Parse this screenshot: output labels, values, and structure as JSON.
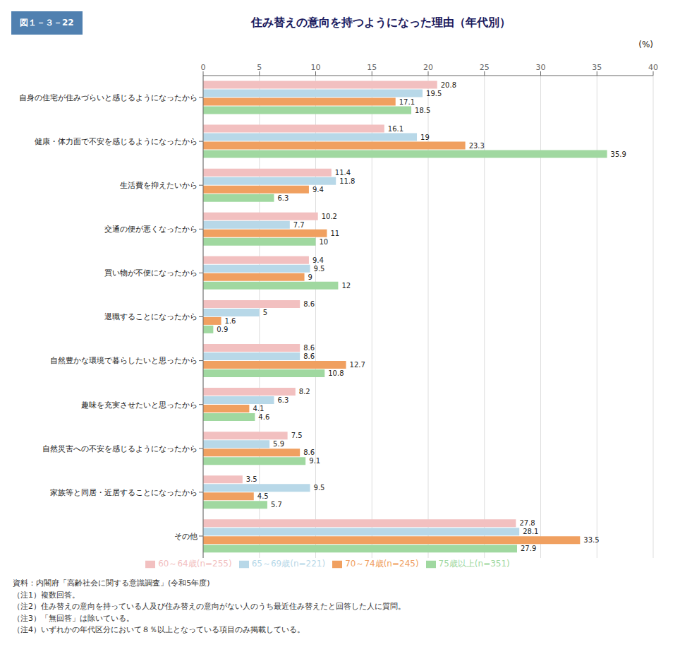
{
  "chart_data": {
    "type": "bar",
    "orientation": "horizontal",
    "title": "住み替えの意向を持つようになった理由（年代別）",
    "xlabel": "(%)",
    "annotations": [
      "図１－３－22",
      "資料：内閣府「高齢社会に関する意識調査」(令和5年度)",
      "（注1）複数回答。",
      "（注2）住み替えの意向を持っている人及び住み替えの意向がない人のうち最近住み替えたと回答した人に質問。",
      "（注3）「無回答」は除いている。",
      "（注4）いずれかの年代区分において８％以上となっている項目のみ掲載している。"
    ],
    "categories": [
      "自身の住宅が住みづらいと感じるようになったから",
      "健康・体力面で不安を感じるようになったから",
      "生活費を抑えたいから",
      "交通の便が悪くなったから",
      "買い物が不便になったから",
      "退職することになったから",
      "自然豊かな環境で暮らしたいと思ったから",
      "趣味を充実させたいと思ったから",
      "自然災害への不安を感じるようになったから",
      "家族等と同居・近居することになったから",
      "その他"
    ],
    "series": [
      {
        "name": "60～64歳(n=255)",
        "color": "#f2c0c0",
        "values": [
          20.8,
          16.1,
          11.4,
          10.2,
          9.4,
          8.6,
          8.6,
          8.2,
          7.5,
          3.5,
          27.8
        ]
      },
      {
        "name": "65～69歳(n=221)",
        "color": "#b8d8e8",
        "values": [
          19.5,
          19.0,
          11.8,
          7.7,
          9.5,
          5.0,
          8.6,
          6.3,
          5.9,
          9.5,
          28.1
        ]
      },
      {
        "name": "70～74歳(n=245)",
        "color": "#f0a060",
        "values": [
          17.1,
          23.3,
          9.4,
          11.0,
          9.0,
          1.6,
          12.7,
          4.1,
          8.6,
          4.5,
          33.5
        ]
      },
      {
        "name": "75歳以上(n=351)",
        "color": "#a0d8a0",
        "values": [
          18.5,
          35.9,
          6.3,
          10.0,
          12.0,
          0.9,
          10.8,
          4.6,
          9.1,
          5.7,
          27.9
        ]
      }
    ],
    "xlim": [
      0,
      40
    ],
    "xticks": [
      0,
      5,
      10,
      15,
      20,
      25,
      30,
      35,
      40
    ],
    "grid": true,
    "legend": "bottom",
    "data_labels": true
  }
}
